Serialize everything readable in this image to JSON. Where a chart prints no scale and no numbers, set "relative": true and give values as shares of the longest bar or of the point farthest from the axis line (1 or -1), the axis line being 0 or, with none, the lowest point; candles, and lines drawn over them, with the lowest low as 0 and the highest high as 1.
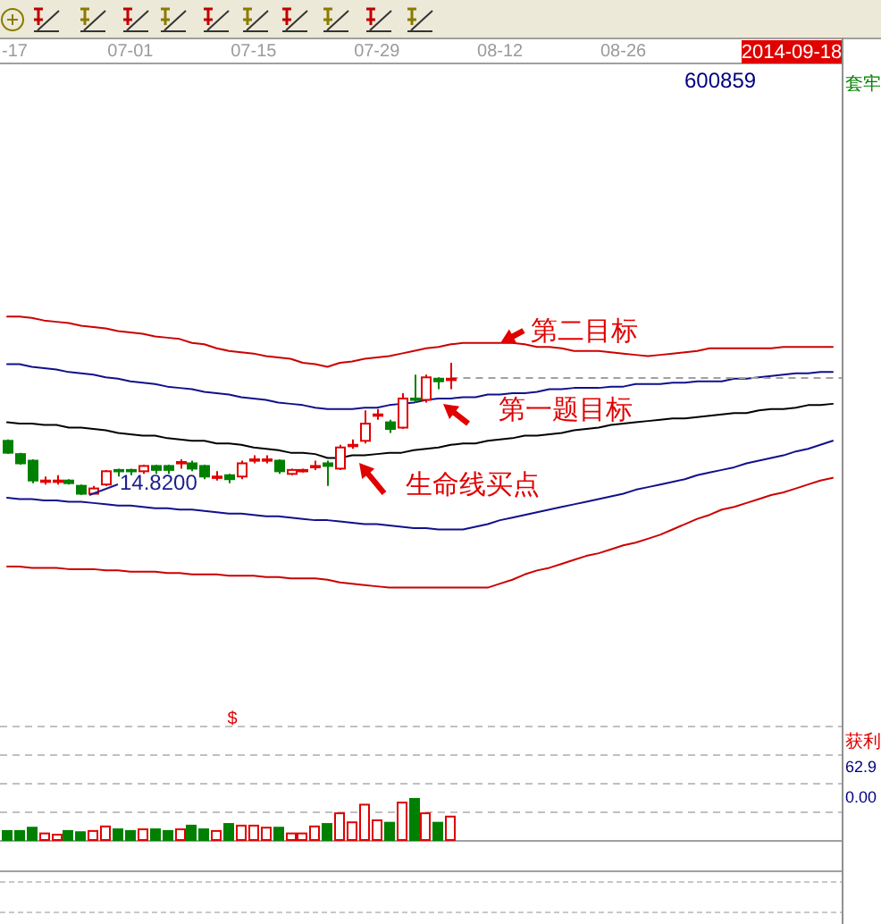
{
  "chart_data": [
    {
      "type": "candlestick",
      "title": "600859",
      "relative": true,
      "categories": [
        "-17",
        null,
        null,
        null,
        null,
        null,
        null,
        null,
        null,
        null,
        "07-01",
        null,
        null,
        null,
        null,
        null,
        null,
        null,
        null,
        null,
        "07-15",
        null,
        null,
        null,
        null,
        null,
        null,
        null,
        null,
        null,
        "07-29",
        null,
        null,
        null,
        null,
        null,
        null,
        null,
        null,
        null,
        "08-12",
        null,
        null,
        null,
        null,
        null,
        null,
        null,
        null,
        null,
        "08-26",
        null,
        null,
        null,
        null,
        null,
        null,
        null,
        null,
        null,
        null,
        null,
        null,
        null,
        null,
        null,
        null,
        null
      ],
      "ohlc": [
        [
          0.41,
          0.42,
          0.31,
          0.32
        ],
        [
          0.31,
          0.32,
          0.23,
          0.24
        ],
        [
          0.26,
          0.27,
          0.09,
          0.11
        ],
        [
          0.1,
          0.14,
          0.08,
          0.11
        ],
        [
          0.1,
          0.15,
          0.08,
          0.11
        ],
        [
          0.11,
          0.12,
          0.08,
          0.09
        ],
        [
          0.07,
          0.08,
          0,
          0.01
        ],
        [
          0.01,
          0.07,
          0.01,
          0.05
        ],
        [
          0.08,
          0.19,
          0.07,
          0.18
        ],
        [
          0.19,
          0.2,
          0.14,
          0.18
        ],
        [
          0.19,
          0.2,
          0.15,
          0.18
        ],
        [
          0.18,
          0.23,
          0.16,
          0.22
        ],
        [
          0.22,
          0.23,
          0.16,
          0.19
        ],
        [
          0.22,
          0.23,
          0.16,
          0.19
        ],
        [
          0.24,
          0.27,
          0.2,
          0.25
        ],
        [
          0.24,
          0.26,
          0.18,
          0.2
        ],
        [
          0.22,
          0.23,
          0.12,
          0.14
        ],
        [
          0.13,
          0.18,
          0.11,
          0.14
        ],
        [
          0.15,
          0.16,
          0.09,
          0.12
        ],
        [
          0.14,
          0.26,
          0.12,
          0.24
        ],
        [
          0.26,
          0.3,
          0.24,
          0.27
        ],
        [
          0.26,
          0.3,
          0.24,
          0.27
        ],
        [
          0.26,
          0.27,
          0.16,
          0.18
        ],
        [
          0.16,
          0.2,
          0.15,
          0.19
        ],
        [
          0.18,
          0.2,
          0.17,
          0.19
        ],
        [
          0.21,
          0.26,
          0.19,
          0.22
        ],
        [
          0.24,
          0.26,
          0.07,
          0.22
        ],
        [
          0.2,
          0.38,
          0.19,
          0.36
        ],
        [
          0.37,
          0.42,
          0.35,
          0.38
        ],
        [
          0.41,
          0.64,
          0.39,
          0.54
        ],
        [
          0.6,
          0.65,
          0.57,
          0.61
        ],
        [
          0.55,
          0.57,
          0.47,
          0.5
        ],
        [
          0.51,
          0.77,
          0.5,
          0.73
        ],
        [
          0.73,
          0.91,
          0.7,
          0.72
        ],
        [
          0.72,
          0.91,
          0.7,
          0.89
        ],
        [
          0.88,
          0.89,
          0.8,
          0.86
        ],
        [
          0.87,
          1,
          0.8,
          0.88
        ],
        null,
        null,
        null,
        null,
        null,
        null,
        null,
        null,
        null,
        null,
        null,
        null,
        null,
        null,
        null,
        null,
        null,
        null,
        null,
        null,
        null,
        null,
        null,
        null,
        null,
        null,
        null,
        null,
        null,
        null,
        null
      ],
      "colors": [
        "#008000",
        "#008000",
        "#008000",
        "#e00000",
        "#e00000",
        "#008000",
        "#008000",
        "#e00000",
        "#e00000",
        "#008000",
        "#008000",
        "#e00000",
        "#008000",
        "#008000",
        "#e00000",
        "#008000",
        "#008000",
        "#e00000",
        "#008000",
        "#e00000",
        "#e00000",
        "#e00000",
        "#008000",
        "#e00000",
        "#e00000",
        "#e00000",
        "#008000",
        "#e00000",
        "#e00000",
        "#e00000",
        "#e00000",
        "#008000",
        "#e00000",
        "#008000",
        "#e00000",
        "#008000",
        "#e00000",
        null,
        null,
        null,
        null,
        null,
        null,
        null,
        null,
        null,
        null,
        null,
        null,
        null,
        null,
        null,
        null,
        null,
        null,
        null,
        null,
        null,
        null,
        null,
        null,
        null,
        null,
        null,
        null,
        null,
        null,
        null
      ],
      "series": [
        {
          "type": "line",
          "color": "#cc0000",
          "values": [
            1.35,
            1.35,
            1.34,
            1.32,
            1.31,
            1.3,
            1.28,
            1.27,
            1.26,
            1.24,
            1.23,
            1.22,
            1.2,
            1.19,
            1.18,
            1.15,
            1.14,
            1.11,
            1.09,
            1.08,
            1.07,
            1.05,
            1.04,
            1.03,
            1.0,
            0.99,
            0.97,
            1.0,
            1.01,
            1.03,
            1.04,
            1.05,
            1.07,
            1.09,
            1.11,
            1.12,
            1.14,
            1.15,
            1.15,
            1.15,
            1.15,
            1.15,
            1.14,
            1.12,
            1.12,
            1.11,
            1.09,
            1.09,
            1.09,
            1.08,
            1.07,
            1.06,
            1.05,
            1.06,
            1.07,
            1.08,
            1.09,
            1.11,
            1.11,
            1.11,
            1.11,
            1.11,
            1.11,
            1.12,
            1.12,
            1.12,
            1.12,
            1.12
          ]
        },
        {
          "type": "line",
          "color": "#10108c",
          "values": [
            0.99,
            0.99,
            0.97,
            0.96,
            0.95,
            0.93,
            0.92,
            0.91,
            0.89,
            0.88,
            0.86,
            0.85,
            0.84,
            0.82,
            0.81,
            0.8,
            0.78,
            0.77,
            0.76,
            0.74,
            0.73,
            0.72,
            0.7,
            0.69,
            0.68,
            0.66,
            0.65,
            0.65,
            0.65,
            0.66,
            0.66,
            0.68,
            0.69,
            0.7,
            0.72,
            0.73,
            0.73,
            0.74,
            0.74,
            0.76,
            0.76,
            0.77,
            0.77,
            0.78,
            0.8,
            0.8,
            0.81,
            0.81,
            0.81,
            0.82,
            0.82,
            0.84,
            0.84,
            0.84,
            0.85,
            0.85,
            0.86,
            0.86,
            0.86,
            0.88,
            0.88,
            0.89,
            0.9,
            0.91,
            0.92,
            0.92,
            0.93,
            0.93
          ]
        },
        {
          "type": "line",
          "color": "#000000",
          "values": [
            0.55,
            0.54,
            0.54,
            0.53,
            0.53,
            0.51,
            0.51,
            0.5,
            0.49,
            0.47,
            0.46,
            0.45,
            0.45,
            0.43,
            0.42,
            0.41,
            0.41,
            0.39,
            0.39,
            0.38,
            0.36,
            0.35,
            0.34,
            0.32,
            0.32,
            0.31,
            0.28,
            0.28,
            0.3,
            0.3,
            0.31,
            0.32,
            0.32,
            0.34,
            0.35,
            0.36,
            0.38,
            0.39,
            0.39,
            0.41,
            0.42,
            0.43,
            0.45,
            0.45,
            0.46,
            0.47,
            0.49,
            0.5,
            0.51,
            0.53,
            0.54,
            0.55,
            0.56,
            0.57,
            0.58,
            0.58,
            0.59,
            0.6,
            0.61,
            0.62,
            0.62,
            0.64,
            0.65,
            0.65,
            0.66,
            0.68,
            0.68,
            0.69
          ]
        },
        {
          "type": "line",
          "color": "#10108c",
          "values": [
            -0.02,
            -0.03,
            -0.03,
            -0.04,
            -0.04,
            -0.05,
            -0.05,
            -0.06,
            -0.07,
            -0.08,
            -0.08,
            -0.09,
            -0.1,
            -0.1,
            -0.11,
            -0.11,
            -0.12,
            -0.13,
            -0.14,
            -0.14,
            -0.15,
            -0.16,
            -0.16,
            -0.17,
            -0.18,
            -0.19,
            -0.19,
            -0.2,
            -0.21,
            -0.22,
            -0.22,
            -0.23,
            -0.24,
            -0.25,
            -0.25,
            -0.26,
            -0.26,
            -0.26,
            -0.24,
            -0.22,
            -0.19,
            -0.17,
            -0.15,
            -0.13,
            -0.11,
            -0.09,
            -0.07,
            -0.05,
            -0.03,
            -0.01,
            0.01,
            0.04,
            0.06,
            0.08,
            0.1,
            0.12,
            0.15,
            0.17,
            0.19,
            0.21,
            0.24,
            0.26,
            0.28,
            0.3,
            0.33,
            0.35,
            0.38,
            0.41
          ]
        },
        {
          "type": "line",
          "color": "#cc0000",
          "values": [
            -0.54,
            -0.54,
            -0.55,
            -0.55,
            -0.55,
            -0.56,
            -0.56,
            -0.56,
            -0.57,
            -0.57,
            -0.58,
            -0.58,
            -0.58,
            -0.59,
            -0.59,
            -0.6,
            -0.6,
            -0.6,
            -0.61,
            -0.61,
            -0.61,
            -0.62,
            -0.62,
            -0.63,
            -0.63,
            -0.63,
            -0.64,
            -0.66,
            -0.67,
            -0.68,
            -0.69,
            -0.7,
            -0.7,
            -0.7,
            -0.7,
            -0.7,
            -0.7,
            -0.7,
            -0.7,
            -0.7,
            -0.67,
            -0.64,
            -0.6,
            -0.57,
            -0.55,
            -0.52,
            -0.49,
            -0.46,
            -0.44,
            -0.41,
            -0.38,
            -0.36,
            -0.33,
            -0.3,
            -0.26,
            -0.22,
            -0.18,
            -0.15,
            -0.11,
            -0.09,
            -0.06,
            -0.03,
            0,
            0.02,
            0.05,
            0.08,
            0.11,
            0.13
          ]
        }
      ],
      "ref_lines": [
        {
          "axis": "y",
          "value": 0.89,
          "color": "#a0a0a0",
          "line_style": "dashed"
        }
      ],
      "annotations": [
        "第二目标",
        "第一题目标",
        "生命线买点",
        "14.8200",
        "2014-09-18"
      ]
    },
    {
      "type": "bar",
      "relative": true,
      "categories": [
        null,
        null,
        null,
        null,
        null,
        null,
        null,
        null,
        null,
        null,
        null,
        null,
        null,
        null,
        null,
        null,
        null,
        null,
        null,
        null,
        null,
        null,
        null,
        null,
        null,
        null,
        null,
        null,
        null,
        null,
        null,
        null,
        null,
        null,
        null,
        null,
        null,
        null,
        null,
        null,
        null,
        null,
        null,
        null,
        null,
        null,
        null,
        null,
        null,
        null,
        null,
        null,
        null,
        null,
        null,
        null,
        null,
        null,
        null,
        null,
        null,
        null,
        null,
        null,
        null,
        null,
        null,
        null
      ],
      "values": [
        0.22,
        0.22,
        0.3,
        0.16,
        0.13,
        0.22,
        0.19,
        0.22,
        0.33,
        0.26,
        0.22,
        0.26,
        0.26,
        0.22,
        0.26,
        0.35,
        0.26,
        0.22,
        0.39,
        0.35,
        0.35,
        0.3,
        0.3,
        0.16,
        0.16,
        0.33,
        0.39,
        0.65,
        0.43,
        0.86,
        0.48,
        0.42,
        0.91,
        1,
        0.65,
        0.42,
        0.57,
        null,
        null,
        null,
        null,
        null,
        null,
        null,
        null,
        null,
        null,
        null,
        null,
        null,
        null,
        null,
        null,
        null,
        null,
        null,
        null,
        null,
        null,
        null,
        null,
        null,
        null,
        null,
        null,
        null,
        null,
        null
      ],
      "colors": [
        "#008000",
        "#008000",
        "#008000",
        "#e00000",
        "#e00000",
        "#008000",
        "#008000",
        "#e00000",
        "#e00000",
        "#008000",
        "#008000",
        "#e00000",
        "#008000",
        "#008000",
        "#e00000",
        "#008000",
        "#008000",
        "#e00000",
        "#008000",
        "#e00000",
        "#e00000",
        "#e00000",
        "#008000",
        "#e00000",
        "#e00000",
        "#e00000",
        "#008000",
        "#e00000",
        "#e00000",
        "#e00000",
        "#e00000",
        "#008000",
        "#e00000",
        "#008000",
        "#e00000",
        "#008000",
        "#e00000",
        null,
        null,
        null,
        null,
        null,
        null,
        null,
        null,
        null,
        null,
        null,
        null,
        null,
        null,
        null,
        null,
        null,
        null,
        null,
        null,
        null,
        null,
        null,
        null,
        null,
        null,
        null,
        null,
        null,
        null,
        null
      ],
      "ref_lines": [
        {
          "axis": "y",
          "value": 0.7,
          "color": "#c0c0c0",
          "line_style": "dashed"
        },
        {
          "axis": "y",
          "value": 1.39,
          "color": "#c0c0c0",
          "line_style": "dashed"
        },
        {
          "axis": "y",
          "value": 2.09,
          "color": "#c0c0c0",
          "line_style": "dashed"
        },
        {
          "axis": "y",
          "value": 2.78,
          "color": "#c0c0c0",
          "line_style": "dashed"
        }
      ],
      "annotations": [
        "$"
      ]
    },
    {
      "type": "other",
      "annotations": [
        "套牢",
        "获利",
        "62.9",
        "0.00"
      ]
    }
  ]
}
